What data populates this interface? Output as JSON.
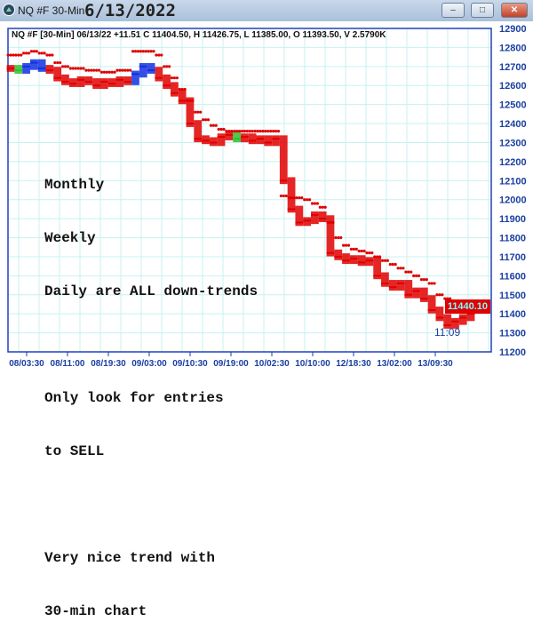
{
  "window": {
    "title": "NQ #F 30-Min",
    "date": "6/13/2022",
    "minimize": "–",
    "maximize": "□",
    "close": "✕"
  },
  "info_line": "NQ #F [30-Min] 06/13/22  +11.51 C 11404.50, H 11426.75, L 11385.00, O 11393.50, V 2.5790K",
  "annotation": [
    "Monthly",
    "Weekly",
    "Daily are ALL down-trends",
    "",
    "Only look for entries",
    "to SELL",
    "",
    "Very nice trend with",
    "30-min chart"
  ],
  "last_price": "11440.10",
  "time_label": "11:09",
  "colors": {
    "bars": "#e00000",
    "up_bars": "#1030e0",
    "green_bars": "#30c030",
    "sar": "#e00000",
    "axis": "#1a3fa0",
    "grid": "#c8f0f0"
  },
  "chart_data": {
    "type": "bar",
    "title": "",
    "ylim": [
      11200,
      12900
    ],
    "y_ticks": [
      12900,
      12800,
      12700,
      12600,
      12500,
      12400,
      12300,
      12200,
      12100,
      12000,
      11900,
      11800,
      11700,
      11600,
      11500,
      11400,
      11300,
      11200
    ],
    "x_tick_labels": [
      "08/03:30",
      "08/11:00",
      "08/19:30",
      "09/03:00",
      "09/10:30",
      "09/19:00",
      "10/02:30",
      "10/10:00",
      "12/18:30",
      "13/02:00",
      "13/09:30"
    ],
    "grid": true,
    "closes": [
      12690,
      12680,
      12700,
      12720,
      12690,
      12680,
      12640,
      12620,
      12610,
      12630,
      12620,
      12600,
      12620,
      12610,
      12630,
      12620,
      12660,
      12700,
      12680,
      12640,
      12600,
      12560,
      12520,
      12400,
      12320,
      12310,
      12300,
      12330,
      12340,
      12320,
      12330,
      12310,
      12320,
      12300,
      12320,
      12100,
      11950,
      11880,
      11890,
      11920,
      11900,
      11720,
      11700,
      11680,
      11690,
      11670,
      11680,
      11600,
      11560,
      11540,
      11560,
      11500,
      11520,
      11480,
      11420,
      11380,
      11340,
      11360,
      11380,
      11400
    ],
    "sar": [
      12760,
      12760,
      12770,
      12780,
      12770,
      12760,
      12720,
      12700,
      12690,
      12690,
      12680,
      12680,
      12670,
      12670,
      12680,
      12680,
      12780,
      12780,
      12780,
      12760,
      12700,
      12640,
      12580,
      12520,
      12460,
      12420,
      12390,
      12370,
      12360,
      12360,
      12360,
      12360,
      12360,
      12360,
      12360,
      12020,
      12010,
      12010,
      12000,
      11980,
      11960,
      11880,
      11800,
      11760,
      11740,
      11730,
      11720,
      11700,
      11680,
      11660,
      11640,
      11620,
      11600,
      11580,
      11560,
      11500,
      11480,
      11460,
      11460,
      11460
    ],
    "blue_bar_indices": [
      2,
      3,
      4,
      16,
      17,
      18
    ],
    "green_bar_indices": [
      1,
      29
    ]
  }
}
